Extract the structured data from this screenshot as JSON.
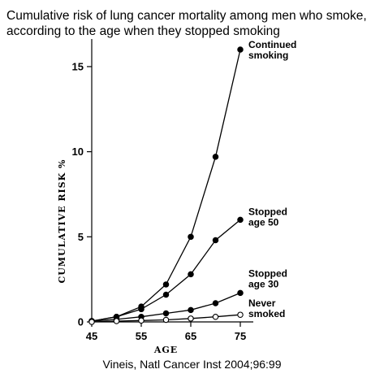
{
  "title_line1": "Cumulative risk of lung cancer mortality among men who smoke,",
  "title_line2": "according to the age when they stopped smoking",
  "source": "Vineis, Natl Cancer Inst 2004;96:99",
  "chart_data": {
    "type": "line",
    "xlabel": "AGE",
    "ylabel": "CUMULATIVE RISK %",
    "xlim": [
      45,
      75
    ],
    "ylim": [
      0,
      16
    ],
    "x_ticks": [
      45,
      55,
      65,
      75
    ],
    "y_ticks": [
      0,
      5,
      10,
      15
    ],
    "x": [
      45,
      50,
      55,
      60,
      65,
      70,
      75
    ],
    "series": [
      {
        "name_lines": [
          "Continued",
          "smoking"
        ],
        "marker": "filled",
        "values": [
          0.05,
          0.3,
          0.9,
          2.2,
          5.0,
          9.7,
          16.0
        ]
      },
      {
        "name_lines": [
          "Stopped",
          "age 50"
        ],
        "marker": "filled",
        "values": [
          0.05,
          0.3,
          0.75,
          1.6,
          2.8,
          4.8,
          6.0
        ]
      },
      {
        "name_lines": [
          "Stopped",
          "age 30"
        ],
        "marker": "filled",
        "values": [
          0.05,
          0.15,
          0.3,
          0.5,
          0.7,
          1.1,
          1.7
        ]
      },
      {
        "name_lines": [
          "Never",
          "smoked"
        ],
        "marker": "open",
        "values": [
          0.0,
          0.05,
          0.08,
          0.12,
          0.2,
          0.3,
          0.42
        ]
      }
    ]
  }
}
